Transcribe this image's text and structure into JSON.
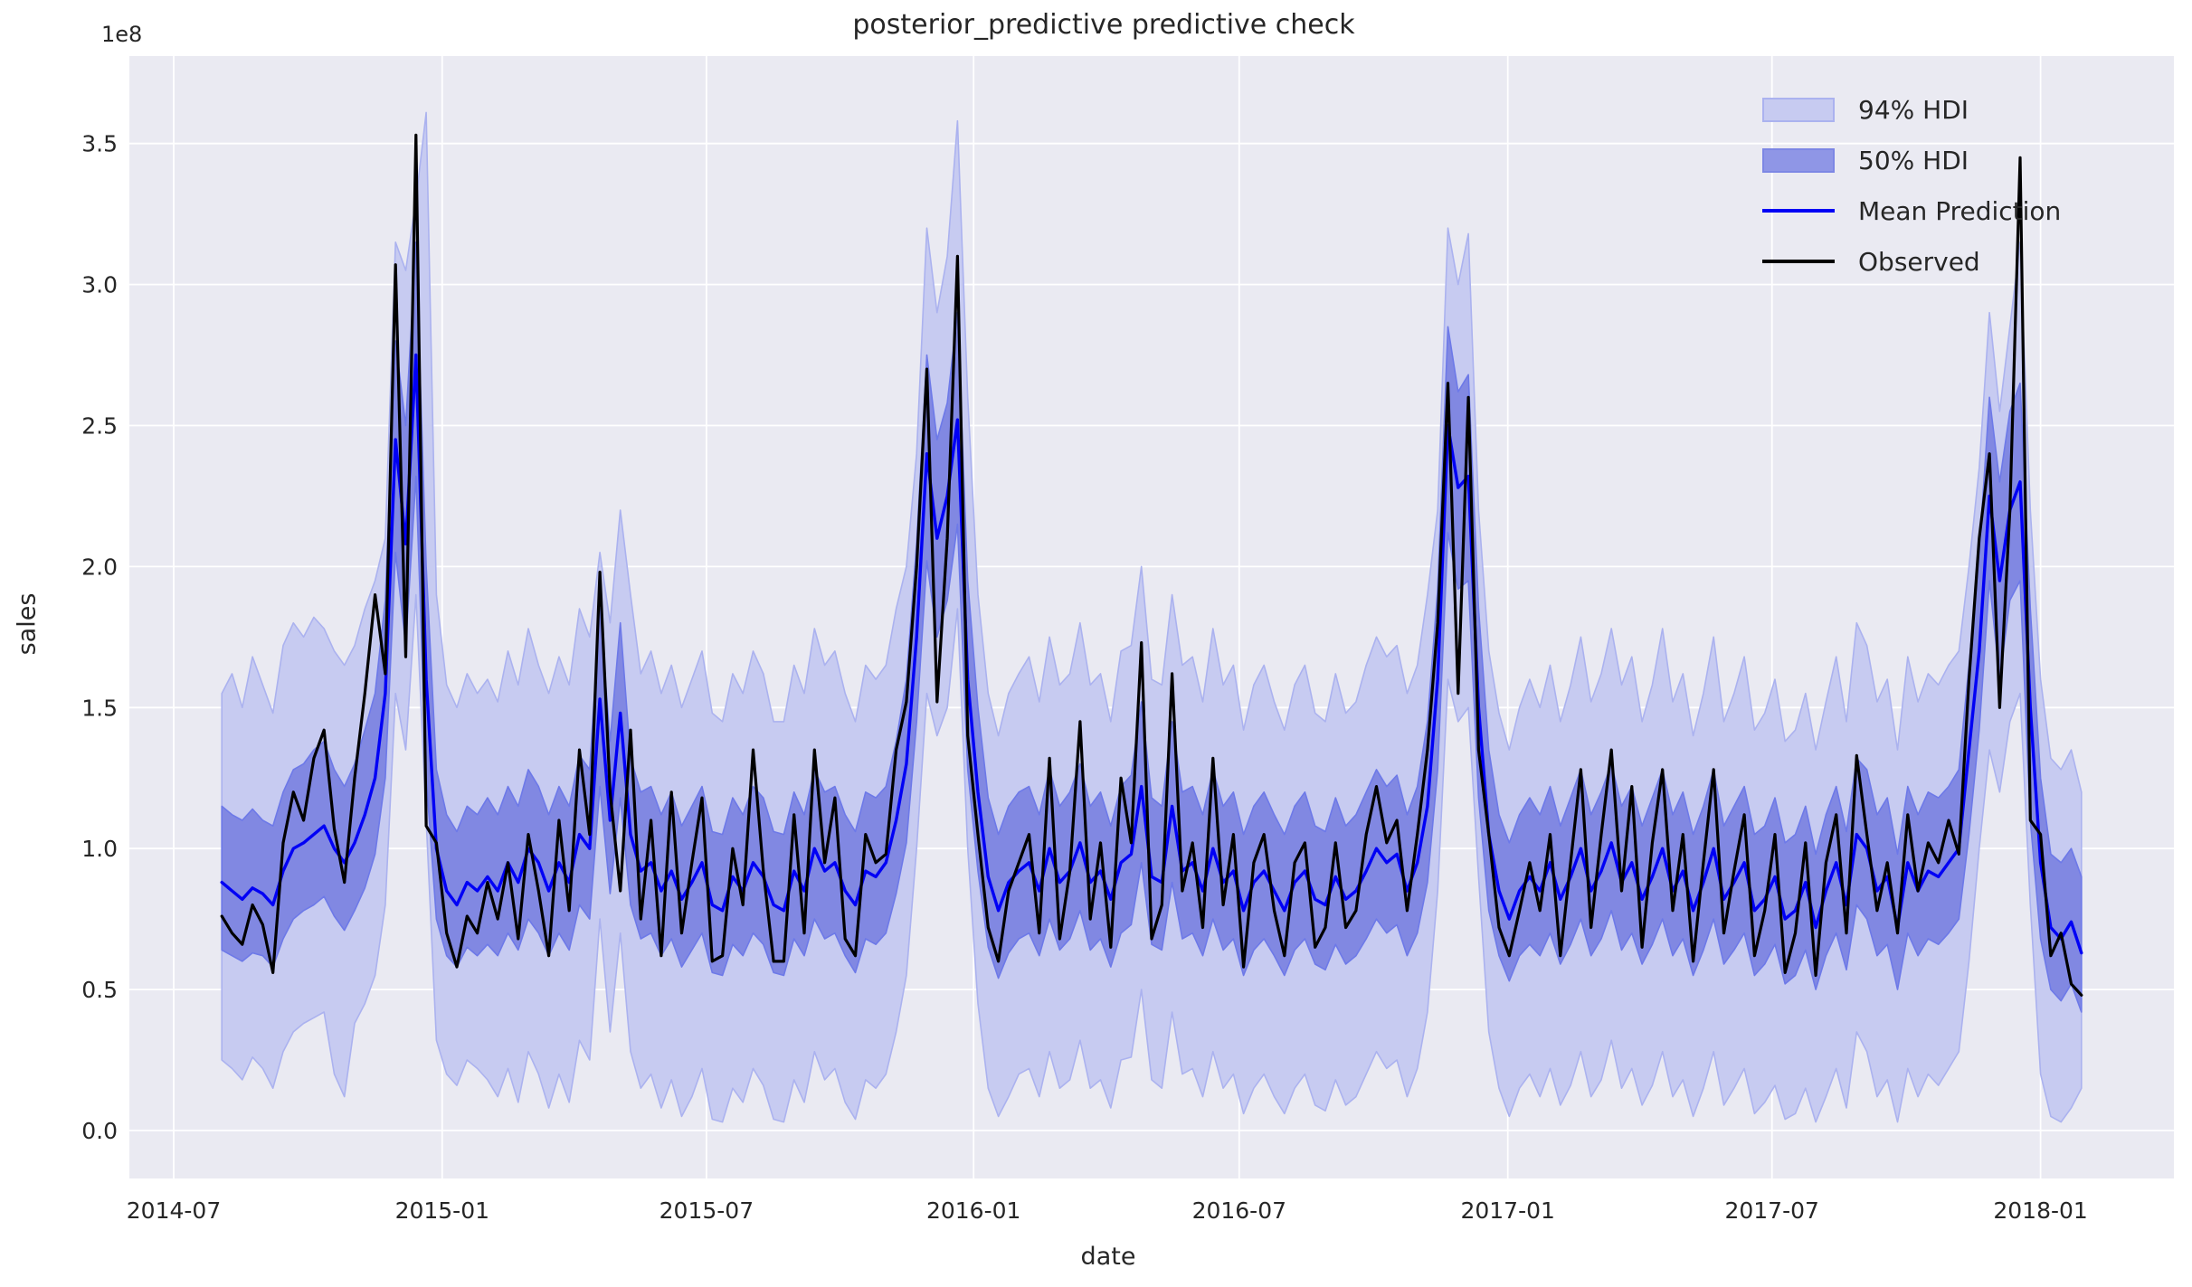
{
  "title": "posterior_predictive predictive check",
  "axes": {
    "xlabel": "date",
    "ylabel": "sales",
    "offset_label": "1e8",
    "xlim_weeks": [
      -9.05,
      191.05
    ],
    "ylim": [
      -0.17,
      3.81
    ],
    "grid": true,
    "x_ticks": [
      {
        "label": "2014-07",
        "week": -4.714
      },
      {
        "label": "2015-01",
        "week": 21.571
      },
      {
        "label": "2015-07",
        "week": 47.429
      },
      {
        "label": "2016-01",
        "week": 73.571
      },
      {
        "label": "2016-07",
        "week": 99.571
      },
      {
        "label": "2017-01",
        "week": 125.857
      },
      {
        "label": "2017-07",
        "week": 151.714
      },
      {
        "label": "2018-01",
        "week": 178.0
      }
    ],
    "y_ticks": [
      {
        "label": "0.0",
        "value": 0.0
      },
      {
        "label": "0.5",
        "value": 0.5
      },
      {
        "label": "1.0",
        "value": 1.0
      },
      {
        "label": "1.5",
        "value": 1.5
      },
      {
        "label": "2.0",
        "value": 2.0
      },
      {
        "label": "2.5",
        "value": 2.5
      },
      {
        "label": "3.0",
        "value": 3.0
      },
      {
        "label": "3.5",
        "value": 3.5
      }
    ]
  },
  "colors": {
    "figure_bg": "#ffffff",
    "axes_bg": "#eaeaf2",
    "grid": "#ffffff",
    "text": "#262626",
    "band94_fill": "#c7cbf1",
    "band94_edge": "#abb2ef",
    "band50_fill": "#8188e2",
    "band50_edge": "#6d79e8",
    "mean_line": "#0000f5",
    "observed_line": "#000000"
  },
  "legend": [
    {
      "label": "94% HDI",
      "type": "patch",
      "fill": "#c7cbf1",
      "edge": "#abb2ef"
    },
    {
      "label": "50% HDI",
      "type": "patch",
      "fill": "#8f96e6",
      "edge": "#7d87e4"
    },
    {
      "label": "Mean Prediction",
      "type": "line",
      "color": "#0000f5"
    },
    {
      "label": "Observed",
      "type": "line",
      "color": "#000000"
    }
  ],
  "chart_data": {
    "type": "line",
    "x_start_date": "2014-08-03",
    "x_interval_days": 7,
    "units": "1e8 sales",
    "legend_position": "upper right",
    "bands": [
      {
        "name": "94% HDI",
        "lo": "hdi94_lower",
        "hi": "hdi94_upper",
        "fill": "band94_fill",
        "edge": "band94_edge"
      },
      {
        "name": "50% HDI",
        "lo": "hdi50_lower",
        "hi": "hdi50_upper",
        "fill": "band50_fill",
        "edge": "band50_edge"
      }
    ],
    "lines": [
      {
        "name": "Mean Prediction",
        "key": "mean",
        "color": "mean_line",
        "width": 3.4
      },
      {
        "name": "Observed",
        "key": "observed",
        "color": "observed_line",
        "width": 3.2
      }
    ],
    "values": {
      "observed": [
        0.76,
        0.7,
        0.66,
        0.8,
        0.73,
        0.56,
        1.02,
        1.2,
        1.1,
        1.32,
        1.42,
        1.07,
        0.88,
        1.25,
        1.55,
        1.9,
        1.62,
        3.07,
        1.68,
        3.53,
        1.08,
        1.02,
        0.7,
        0.58,
        0.76,
        0.7,
        0.88,
        0.75,
        0.95,
        0.68,
        1.05,
        0.85,
        0.62,
        1.1,
        0.78,
        1.35,
        1.05,
        1.98,
        1.2,
        0.85,
        1.42,
        0.75,
        1.1,
        0.62,
        1.2,
        0.7,
        0.95,
        1.18,
        0.6,
        0.62,
        1.0,
        0.8,
        1.35,
        0.92,
        0.6,
        0.6,
        1.12,
        0.7,
        1.35,
        0.95,
        1.18,
        0.68,
        0.62,
        1.05,
        0.95,
        0.98,
        1.35,
        1.52,
        2.0,
        2.7,
        1.52,
        2.1,
        3.1,
        1.4,
        1.05,
        0.72,
        0.6,
        0.85,
        0.95,
        1.05,
        0.7,
        1.32,
        0.68,
        0.92,
        1.45,
        0.75,
        1.02,
        0.65,
        1.25,
        1.02,
        1.73,
        0.68,
        0.8,
        1.62,
        0.85,
        1.02,
        0.72,
        1.32,
        0.8,
        1.05,
        0.58,
        0.95,
        1.05,
        0.78,
        0.62,
        0.95,
        1.02,
        0.65,
        0.72,
        1.02,
        0.72,
        0.78,
        1.05,
        1.22,
        1.02,
        1.1,
        0.78,
        1.05,
        1.35,
        1.8,
        2.65,
        1.55,
        2.6,
        1.35,
        1.05,
        0.72,
        0.62,
        0.78,
        0.95,
        0.78,
        1.05,
        0.62,
        0.95,
        1.28,
        0.72,
        1.05,
        1.35,
        0.85,
        1.22,
        0.65,
        1.02,
        1.28,
        0.78,
        1.05,
        0.6,
        0.95,
        1.28,
        0.7,
        0.92,
        1.12,
        0.62,
        0.78,
        1.05,
        0.56,
        0.7,
        1.02,
        0.55,
        0.95,
        1.12,
        0.7,
        1.33,
        1.05,
        0.78,
        0.95,
        0.7,
        1.12,
        0.85,
        1.02,
        0.95,
        1.1,
        0.98,
        1.6,
        2.1,
        2.4,
        1.5,
        2.2,
        3.45,
        1.1,
        1.05,
        0.62,
        0.7,
        0.52,
        0.48
      ],
      "mean": [
        0.88,
        0.85,
        0.82,
        0.86,
        0.84,
        0.8,
        0.92,
        1.0,
        1.02,
        1.05,
        1.08,
        1.0,
        0.95,
        1.02,
        1.12,
        1.25,
        1.55,
        2.45,
        2.08,
        2.75,
        1.6,
        1.0,
        0.85,
        0.8,
        0.88,
        0.85,
        0.9,
        0.85,
        0.95,
        0.88,
        1.0,
        0.95,
        0.85,
        0.95,
        0.88,
        1.05,
        1.0,
        1.53,
        1.1,
        1.48,
        1.05,
        0.92,
        0.95,
        0.85,
        0.92,
        0.82,
        0.88,
        0.95,
        0.8,
        0.78,
        0.9,
        0.85,
        0.95,
        0.9,
        0.8,
        0.78,
        0.92,
        0.85,
        1.0,
        0.92,
        0.95,
        0.85,
        0.8,
        0.92,
        0.9,
        0.95,
        1.1,
        1.3,
        1.75,
        2.4,
        2.1,
        2.25,
        2.52,
        1.6,
        1.2,
        0.9,
        0.78,
        0.88,
        0.92,
        0.95,
        0.85,
        1.0,
        0.88,
        0.92,
        1.02,
        0.88,
        0.92,
        0.82,
        0.95,
        0.98,
        1.22,
        0.9,
        0.88,
        1.15,
        0.92,
        0.95,
        0.85,
        1.0,
        0.88,
        0.92,
        0.78,
        0.88,
        0.92,
        0.85,
        0.78,
        0.88,
        0.92,
        0.82,
        0.8,
        0.9,
        0.82,
        0.85,
        0.92,
        1.0,
        0.95,
        0.98,
        0.85,
        0.95,
        1.15,
        1.6,
        2.5,
        2.28,
        2.32,
        1.5,
        1.05,
        0.85,
        0.75,
        0.85,
        0.9,
        0.85,
        0.95,
        0.82,
        0.9,
        1.0,
        0.85,
        0.92,
        1.02,
        0.88,
        0.95,
        0.82,
        0.9,
        1.0,
        0.85,
        0.92,
        0.78,
        0.88,
        1.0,
        0.82,
        0.88,
        0.95,
        0.78,
        0.82,
        0.9,
        0.75,
        0.78,
        0.88,
        0.72,
        0.85,
        0.95,
        0.8,
        1.05,
        1.0,
        0.85,
        0.9,
        0.72,
        0.95,
        0.85,
        0.92,
        0.9,
        0.95,
        1.0,
        1.35,
        1.7,
        2.25,
        1.95,
        2.2,
        2.3,
        1.5,
        0.95,
        0.72,
        0.68,
        0.74,
        0.63
      ],
      "hdi50_upper": [
        1.15,
        1.12,
        1.1,
        1.14,
        1.1,
        1.08,
        1.2,
        1.28,
        1.3,
        1.35,
        1.38,
        1.28,
        1.22,
        1.3,
        1.42,
        1.55,
        1.88,
        2.8,
        2.5,
        3.15,
        2.0,
        1.28,
        1.12,
        1.06,
        1.15,
        1.12,
        1.18,
        1.12,
        1.22,
        1.15,
        1.28,
        1.22,
        1.12,
        1.22,
        1.15,
        1.33,
        1.28,
        1.85,
        1.38,
        1.8,
        1.32,
        1.2,
        1.22,
        1.12,
        1.2,
        1.08,
        1.15,
        1.22,
        1.06,
        1.05,
        1.18,
        1.12,
        1.22,
        1.18,
        1.06,
        1.05,
        1.2,
        1.12,
        1.28,
        1.2,
        1.22,
        1.12,
        1.06,
        1.2,
        1.18,
        1.22,
        1.38,
        1.6,
        2.08,
        2.75,
        2.45,
        2.58,
        2.9,
        1.95,
        1.5,
        1.18,
        1.05,
        1.15,
        1.2,
        1.22,
        1.12,
        1.28,
        1.15,
        1.2,
        1.3,
        1.15,
        1.2,
        1.08,
        1.22,
        1.26,
        1.52,
        1.18,
        1.15,
        1.45,
        1.2,
        1.22,
        1.12,
        1.28,
        1.15,
        1.2,
        1.05,
        1.15,
        1.2,
        1.12,
        1.05,
        1.15,
        1.2,
        1.08,
        1.06,
        1.18,
        1.08,
        1.12,
        1.2,
        1.28,
        1.22,
        1.26,
        1.12,
        1.22,
        1.45,
        1.92,
        2.85,
        2.62,
        2.68,
        1.85,
        1.35,
        1.12,
        1.02,
        1.12,
        1.18,
        1.12,
        1.22,
        1.08,
        1.18,
        1.28,
        1.12,
        1.2,
        1.3,
        1.15,
        1.22,
        1.08,
        1.18,
        1.28,
        1.12,
        1.2,
        1.05,
        1.15,
        1.28,
        1.08,
        1.15,
        1.22,
        1.05,
        1.08,
        1.18,
        1.02,
        1.05,
        1.15,
        0.98,
        1.12,
        1.22,
        1.06,
        1.32,
        1.28,
        1.12,
        1.18,
        0.98,
        1.22,
        1.12,
        1.2,
        1.18,
        1.22,
        1.28,
        1.65,
        2.05,
        2.6,
        2.3,
        2.55,
        2.65,
        1.85,
        1.25,
        0.98,
        0.95,
        1.0,
        0.9
      ],
      "hdi50_lower": [
        0.64,
        0.62,
        0.6,
        0.63,
        0.62,
        0.58,
        0.68,
        0.75,
        0.78,
        0.8,
        0.83,
        0.76,
        0.71,
        0.78,
        0.86,
        0.98,
        1.25,
        2.05,
        1.72,
        2.32,
        1.25,
        0.75,
        0.62,
        0.58,
        0.65,
        0.62,
        0.66,
        0.62,
        0.7,
        0.64,
        0.75,
        0.7,
        0.62,
        0.7,
        0.64,
        0.8,
        0.75,
        1.22,
        0.84,
        1.18,
        0.8,
        0.68,
        0.7,
        0.62,
        0.68,
        0.58,
        0.64,
        0.7,
        0.56,
        0.55,
        0.66,
        0.62,
        0.7,
        0.66,
        0.56,
        0.55,
        0.68,
        0.62,
        0.75,
        0.68,
        0.7,
        0.62,
        0.56,
        0.68,
        0.66,
        0.7,
        0.84,
        1.02,
        1.45,
        2.02,
        1.75,
        1.88,
        2.15,
        1.28,
        0.92,
        0.65,
        0.54,
        0.63,
        0.68,
        0.7,
        0.62,
        0.75,
        0.64,
        0.68,
        0.78,
        0.64,
        0.68,
        0.58,
        0.7,
        0.73,
        0.95,
        0.66,
        0.64,
        0.88,
        0.68,
        0.7,
        0.62,
        0.75,
        0.64,
        0.68,
        0.55,
        0.64,
        0.68,
        0.62,
        0.55,
        0.64,
        0.68,
        0.59,
        0.57,
        0.66,
        0.59,
        0.62,
        0.68,
        0.75,
        0.7,
        0.73,
        0.62,
        0.7,
        0.88,
        1.28,
        2.12,
        1.92,
        1.95,
        1.18,
        0.78,
        0.62,
        0.53,
        0.62,
        0.66,
        0.62,
        0.7,
        0.59,
        0.66,
        0.75,
        0.62,
        0.68,
        0.78,
        0.64,
        0.7,
        0.59,
        0.66,
        0.75,
        0.62,
        0.68,
        0.55,
        0.64,
        0.75,
        0.59,
        0.64,
        0.7,
        0.55,
        0.59,
        0.66,
        0.52,
        0.55,
        0.64,
        0.5,
        0.62,
        0.7,
        0.57,
        0.8,
        0.75,
        0.62,
        0.66,
        0.5,
        0.7,
        0.62,
        0.68,
        0.66,
        0.7,
        0.75,
        1.05,
        1.42,
        1.95,
        1.6,
        1.88,
        1.95,
        1.1,
        0.68,
        0.5,
        0.46,
        0.52,
        0.42
      ],
      "hdi94_upper": [
        1.55,
        1.62,
        1.5,
        1.68,
        1.58,
        1.48,
        1.72,
        1.8,
        1.75,
        1.82,
        1.78,
        1.7,
        1.65,
        1.72,
        1.85,
        1.95,
        2.1,
        3.15,
        3.05,
        3.3,
        3.61,
        1.9,
        1.58,
        1.5,
        1.62,
        1.55,
        1.6,
        1.52,
        1.7,
        1.58,
        1.78,
        1.65,
        1.55,
        1.68,
        1.58,
        1.85,
        1.75,
        2.05,
        1.8,
        2.2,
        1.9,
        1.62,
        1.7,
        1.55,
        1.65,
        1.5,
        1.6,
        1.7,
        1.48,
        1.45,
        1.62,
        1.55,
        1.7,
        1.62,
        1.45,
        1.45,
        1.65,
        1.55,
        1.78,
        1.65,
        1.7,
        1.55,
        1.45,
        1.65,
        1.6,
        1.65,
        1.85,
        2.0,
        2.4,
        3.2,
        2.9,
        3.1,
        3.58,
        2.6,
        1.9,
        1.55,
        1.4,
        1.55,
        1.62,
        1.68,
        1.52,
        1.75,
        1.58,
        1.62,
        1.8,
        1.58,
        1.62,
        1.45,
        1.7,
        1.72,
        2.0,
        1.6,
        1.58,
        1.9,
        1.65,
        1.68,
        1.52,
        1.78,
        1.58,
        1.65,
        1.42,
        1.58,
        1.65,
        1.52,
        1.42,
        1.58,
        1.65,
        1.48,
        1.45,
        1.62,
        1.48,
        1.52,
        1.65,
        1.75,
        1.68,
        1.72,
        1.55,
        1.65,
        1.9,
        2.2,
        3.2,
        3.0,
        3.18,
        2.2,
        1.7,
        1.48,
        1.35,
        1.5,
        1.6,
        1.5,
        1.65,
        1.45,
        1.58,
        1.75,
        1.52,
        1.62,
        1.78,
        1.58,
        1.68,
        1.45,
        1.58,
        1.78,
        1.52,
        1.62,
        1.4,
        1.55,
        1.75,
        1.45,
        1.55,
        1.68,
        1.42,
        1.48,
        1.6,
        1.38,
        1.42,
        1.55,
        1.35,
        1.52,
        1.68,
        1.45,
        1.8,
        1.72,
        1.52,
        1.6,
        1.35,
        1.68,
        1.52,
        1.62,
        1.58,
        1.65,
        1.7,
        2.0,
        2.35,
        2.9,
        2.55,
        2.85,
        3.15,
        2.2,
        1.6,
        1.32,
        1.28,
        1.35,
        1.2
      ],
      "hdi94_lower": [
        0.25,
        0.22,
        0.18,
        0.26,
        0.22,
        0.15,
        0.28,
        0.35,
        0.38,
        0.4,
        0.42,
        0.2,
        0.12,
        0.38,
        0.45,
        0.55,
        0.8,
        1.55,
        1.35,
        1.9,
        1.1,
        0.32,
        0.2,
        0.16,
        0.25,
        0.22,
        0.18,
        0.12,
        0.22,
        0.1,
        0.28,
        0.2,
        0.08,
        0.2,
        0.1,
        0.32,
        0.25,
        0.75,
        0.35,
        0.7,
        0.28,
        0.15,
        0.2,
        0.08,
        0.18,
        0.05,
        0.12,
        0.22,
        0.04,
        0.03,
        0.15,
        0.1,
        0.22,
        0.16,
        0.04,
        0.03,
        0.18,
        0.1,
        0.28,
        0.18,
        0.22,
        0.1,
        0.04,
        0.18,
        0.15,
        0.2,
        0.35,
        0.55,
        1.0,
        1.55,
        1.4,
        1.5,
        1.85,
        1.0,
        0.45,
        0.15,
        0.05,
        0.12,
        0.2,
        0.22,
        0.12,
        0.28,
        0.15,
        0.18,
        0.32,
        0.15,
        0.18,
        0.08,
        0.25,
        0.26,
        0.5,
        0.18,
        0.15,
        0.42,
        0.2,
        0.22,
        0.12,
        0.28,
        0.15,
        0.2,
        0.06,
        0.15,
        0.2,
        0.12,
        0.06,
        0.15,
        0.2,
        0.09,
        0.07,
        0.18,
        0.09,
        0.12,
        0.2,
        0.28,
        0.22,
        0.25,
        0.12,
        0.22,
        0.42,
        0.85,
        1.6,
        1.45,
        1.5,
        0.9,
        0.35,
        0.15,
        0.05,
        0.15,
        0.2,
        0.12,
        0.22,
        0.09,
        0.16,
        0.28,
        0.12,
        0.18,
        0.32,
        0.15,
        0.22,
        0.09,
        0.16,
        0.28,
        0.12,
        0.18,
        0.05,
        0.15,
        0.28,
        0.09,
        0.15,
        0.22,
        0.06,
        0.1,
        0.16,
        0.04,
        0.06,
        0.15,
        0.03,
        0.12,
        0.22,
        0.08,
        0.35,
        0.28,
        0.12,
        0.18,
        0.03,
        0.22,
        0.12,
        0.2,
        0.16,
        0.22,
        0.28,
        0.6,
        1.0,
        1.35,
        1.2,
        1.45,
        1.55,
        0.8,
        0.2,
        0.05,
        0.03,
        0.08,
        0.15
      ]
    }
  }
}
